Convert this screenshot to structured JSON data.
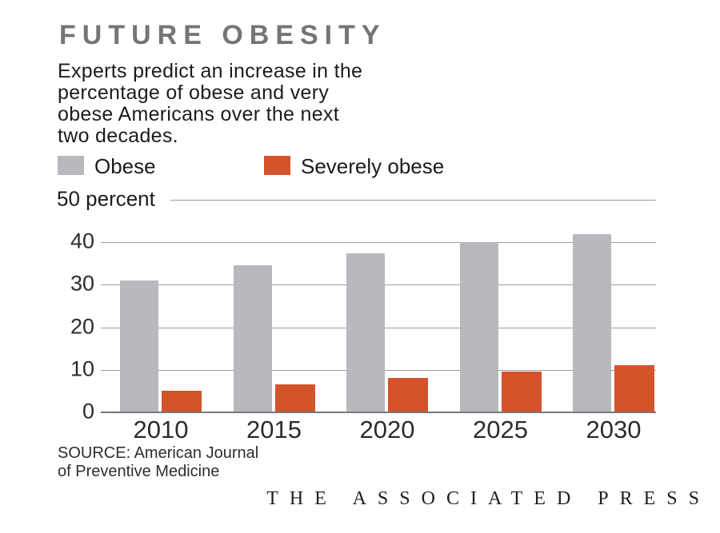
{
  "header": {
    "title": "FUTURE OBESITY",
    "subtitle": "Experts predict an increase in the\npercentage of obese and very\nobese Americans over the next\ntwo decades."
  },
  "legend": {
    "items": [
      {
        "label": "Obese",
        "color": "#b7b9bc"
      },
      {
        "label": "Severely obese",
        "color": "#d4532b"
      }
    ]
  },
  "chart_data": {
    "type": "bar",
    "title": "FUTURE OBESITY",
    "categories": [
      "2010",
      "2015",
      "2020",
      "2025",
      "2030"
    ],
    "series": [
      {
        "name": "Obese",
        "color": "#b7b9bc",
        "values": [
          31,
          34.5,
          37.5,
          40,
          42
        ]
      },
      {
        "name": "Severely obese",
        "color": "#d4532b",
        "values": [
          5,
          6.5,
          8,
          9.5,
          11
        ]
      }
    ],
    "xlabel": "",
    "ylabel": "percent",
    "ylim": [
      0,
      50
    ],
    "yticks": [
      0,
      10,
      20,
      30,
      40,
      50
    ],
    "ytick_top_label": "50 percent",
    "grid": true,
    "legend_position": "top",
    "gridline_color": "#9b9da0",
    "axis_color": "#77787b"
  },
  "footer": {
    "source": "SOURCE: American Journal\nof Preventive Medicine",
    "credit": "THE ASSOCIATED PRESS"
  }
}
